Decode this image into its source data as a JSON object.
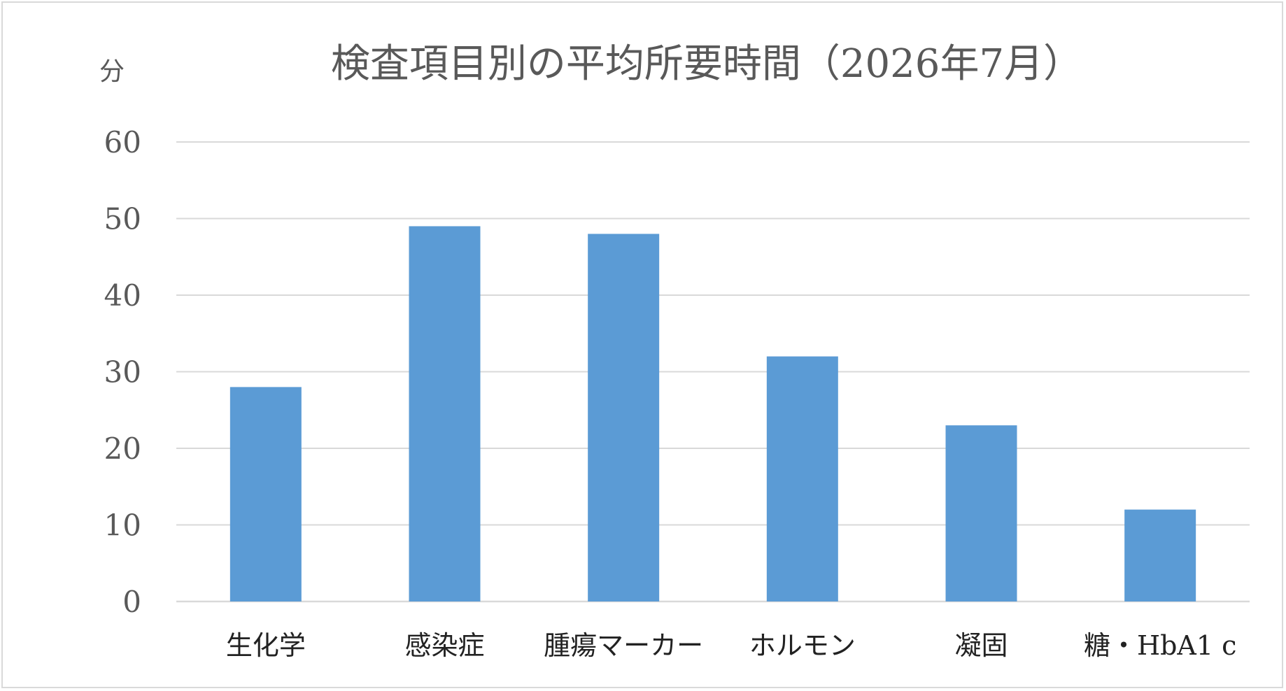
{
  "chart_data": {
    "type": "bar",
    "title": "検査項目別の平均所要時間（2026年7月）",
    "ylabel": "分",
    "xlabel": "",
    "categories": [
      "生化学",
      "感染症",
      "腫瘍マーカー",
      "ホルモン",
      "凝固",
      "糖・HbA1 c"
    ],
    "values": [
      28,
      49,
      48,
      32,
      23,
      12
    ],
    "ylim": [
      0,
      60
    ],
    "yticks": [
      0,
      10,
      20,
      30,
      40,
      50,
      60
    ],
    "grid": true,
    "legend": "none",
    "bar_color": "#5B9BD5",
    "grid_color": "#d9d9d9"
  }
}
